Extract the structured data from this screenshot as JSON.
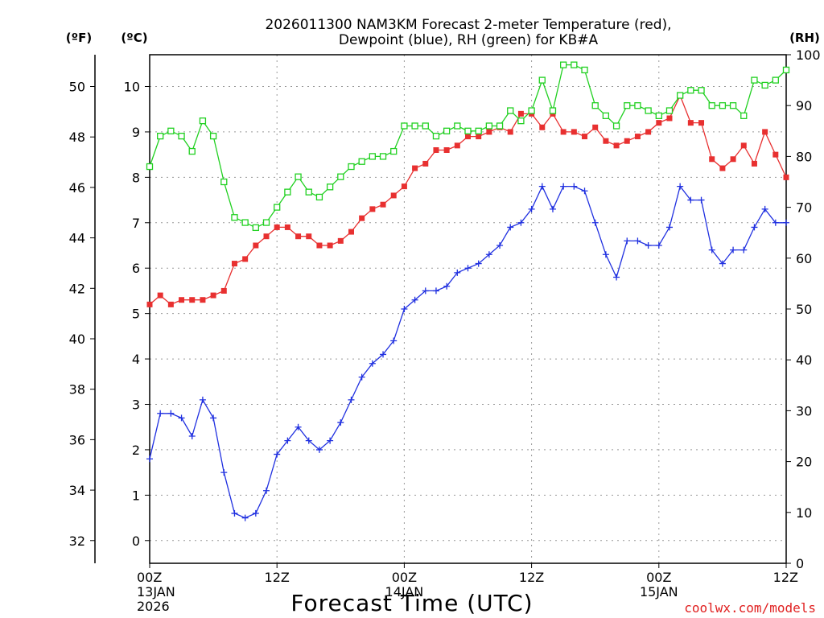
{
  "chart_data": {
    "type": "line",
    "title_line1": "2026011300 NAM3KM Forecast 2-meter Temperature (red),",
    "title_line2": "Dewpoint (blue), RH (green) for KB#A",
    "unit_f": "(ºF)",
    "unit_c": "(ºC)",
    "unit_rh": "(RH)",
    "xlabel": "Forecast Time (UTC)",
    "credit": "coolwx.com/models",
    "x_range_hours": [
      0,
      60
    ],
    "x_ticks": [
      {
        "hour": 0,
        "lines": [
          "00Z",
          "13JAN",
          "2026"
        ]
      },
      {
        "hour": 12,
        "lines": [
          "12Z"
        ]
      },
      {
        "hour": 24,
        "lines": [
          "00Z",
          "14JAN"
        ]
      },
      {
        "hour": 36,
        "lines": [
          "12Z"
        ]
      },
      {
        "hour": 48,
        "lines": [
          "00Z",
          "15JAN"
        ]
      },
      {
        "hour": 60,
        "lines": [
          "12Z"
        ]
      }
    ],
    "celsius_axis": {
      "range": [
        -0.5,
        10.7
      ],
      "ticks": [
        0,
        1,
        2,
        3,
        4,
        5,
        6,
        7,
        8,
        9,
        10
      ]
    },
    "fahrenheit_axis": {
      "range": [
        31.1,
        51.26
      ],
      "ticks": [
        32,
        34,
        36,
        38,
        40,
        42,
        44,
        46,
        48,
        50
      ]
    },
    "rh_axis": {
      "range": [
        0,
        100
      ],
      "ticks": [
        0,
        10,
        20,
        30,
        40,
        50,
        60,
        70,
        80,
        90,
        100
      ]
    },
    "grid": true,
    "series": [
      {
        "name": "2-meter Temperature",
        "color": "#e83030",
        "axis": "celsius",
        "marker": "filled-square",
        "values": [
          5.2,
          5.4,
          5.2,
          5.3,
          5.3,
          5.3,
          5.4,
          5.5,
          6.1,
          6.2,
          6.5,
          6.7,
          6.9,
          6.9,
          6.7,
          6.7,
          6.5,
          6.5,
          6.6,
          6.8,
          7.1,
          7.3,
          7.4,
          7.6,
          7.8,
          8.2,
          8.3,
          8.6,
          8.6,
          8.7,
          8.9,
          8.9,
          9.0,
          9.1,
          9.0,
          9.4,
          9.4,
          9.1,
          9.4,
          9.0,
          9.0,
          8.9,
          9.1,
          8.8,
          8.7,
          8.8,
          8.9,
          9.0,
          9.2,
          9.3,
          9.8,
          9.2,
          9.2,
          8.4,
          8.2,
          8.4,
          8.7,
          8.3,
          9.0,
          8.5,
          8.0
        ]
      },
      {
        "name": "Dewpoint",
        "color": "#2030e0",
        "axis": "celsius",
        "marker": "plus",
        "values": [
          1.8,
          2.8,
          2.8,
          2.7,
          2.3,
          3.1,
          2.7,
          1.5,
          0.6,
          0.5,
          0.6,
          1.1,
          1.9,
          2.2,
          2.5,
          2.2,
          2.0,
          2.2,
          2.6,
          3.1,
          3.6,
          3.9,
          4.1,
          4.4,
          5.1,
          5.3,
          5.5,
          5.5,
          5.6,
          5.9,
          6.0,
          6.1,
          6.3,
          6.5,
          6.9,
          7.0,
          7.3,
          7.8,
          7.3,
          7.8,
          7.8,
          7.7,
          7.0,
          6.3,
          5.8,
          6.6,
          6.6,
          6.5,
          6.5,
          6.9,
          7.8,
          7.5,
          7.5,
          6.4,
          6.1,
          6.4,
          6.4,
          6.9,
          7.3,
          7.0,
          7.0
        ]
      },
      {
        "name": "RH",
        "color": "#20d020",
        "axis": "rh",
        "marker": "open-square",
        "values": [
          78,
          84,
          85,
          84,
          81,
          87,
          84,
          75,
          68,
          67,
          66,
          67,
          70,
          73,
          76,
          73,
          72,
          74,
          76,
          78,
          79,
          80,
          80,
          81,
          86,
          86,
          86,
          84,
          85,
          86,
          85,
          85,
          86,
          86,
          89,
          87,
          89,
          95,
          89,
          98,
          98,
          97,
          90,
          88,
          86,
          90,
          90,
          89,
          88,
          89,
          92,
          93,
          93,
          90,
          90,
          90,
          88,
          95,
          94,
          95,
          97
        ]
      }
    ]
  }
}
